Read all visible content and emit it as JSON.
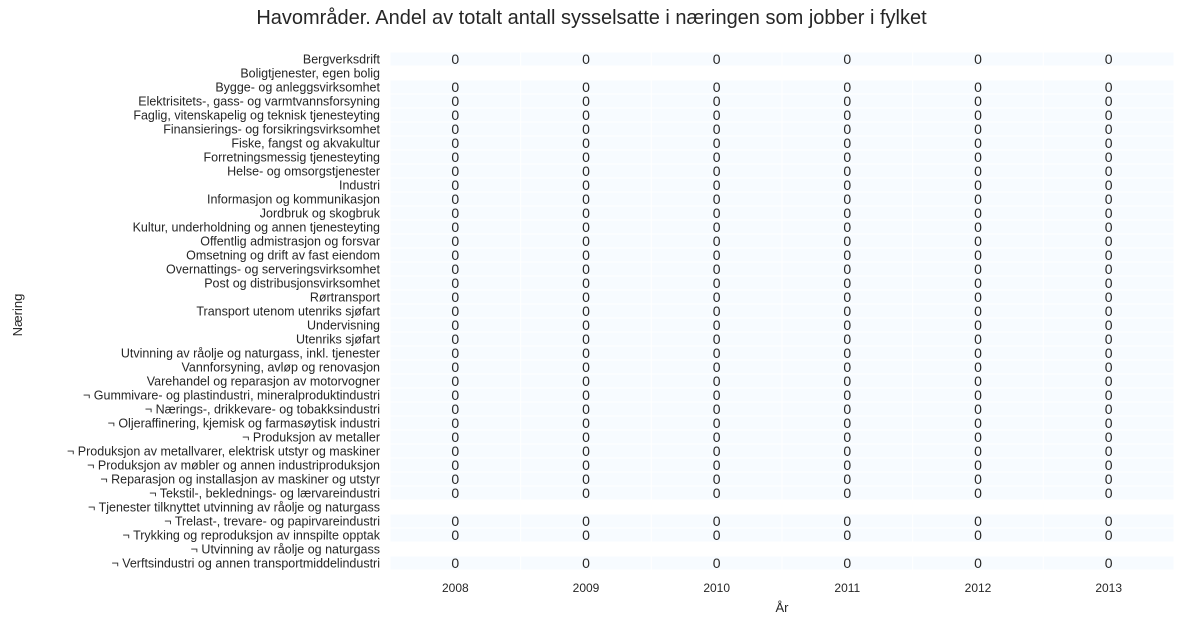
{
  "chart_data": {
    "type": "heatmap",
    "title": "Havområder. Andel av totalt antall sysselsatte i næringen som jobber i fylket",
    "xlabel": "År",
    "ylabel": "Næring",
    "columns": [
      "2008",
      "2009",
      "2010",
      "2011",
      "2012",
      "2013"
    ],
    "rows": [
      "Bergverksdrift",
      "Boligtjenester, egen bolig",
      "Bygge- og anleggsvirksomhet",
      "Elektrisitets-, gass- og varmtvannsforsyning",
      "Faglig, vitenskapelig og teknisk tjenesteyting",
      "Finansierings- og forsikringsvirksomhet",
      "Fiske, fangst og akvakultur",
      "Forretningsmessig tjenesteyting",
      "Helse- og omsorgstjenester",
      "Industri",
      "Informasjon og kommunikasjon",
      "Jordbruk og skogbruk",
      "Kultur, underholdning og annen tjenesteyting",
      "Offentlig admistrasjon og forsvar",
      "Omsetning og drift av fast eiendom",
      "Overnattings- og serveringsvirksomhet",
      "Post og distribusjonsvirksomhet",
      "Rørtransport",
      "Transport utenom utenriks sjøfart",
      "Undervisning",
      "Utenriks sjøfart",
      "Utvinning av råolje og naturgass, inkl. tjenester",
      "Vannforsyning, avløp og renovasjon",
      "Varehandel og reparasjon av motorvogner",
      "¬ Gummivare- og plastindustri, mineralproduktindustri",
      "¬ Nærings-, drikkevare- og tobakksindustri",
      "¬ Oljeraffinering, kjemisk og farmasøytisk industri",
      "¬ Produksjon av metaller",
      "¬ Produksjon av metallvarer, elektrisk utstyr og maskiner",
      "¬ Produksjon av møbler og annen industriproduksjon",
      "¬ Reparasjon og installasjon av maskiner og utstyr",
      "¬ Tekstil-, beklednings- og lærvareindustri",
      "¬ Tjenester tilknyttet utvinning av råolje og naturgass",
      "¬ Trelast-, trevare- og papirvareindustri",
      "¬ Trykking og reproduksjon av innspilte opptak",
      "¬ Utvinning av råolje og naturgass",
      "¬ Verftsindustri og annen transportmiddelindustri"
    ],
    "values": [
      [
        0,
        0,
        0,
        0,
        0,
        0
      ],
      [
        null,
        null,
        null,
        null,
        null,
        null
      ],
      [
        0,
        0,
        0,
        0,
        0,
        0
      ],
      [
        0,
        0,
        0,
        0,
        0,
        0
      ],
      [
        0,
        0,
        0,
        0,
        0,
        0
      ],
      [
        0,
        0,
        0,
        0,
        0,
        0
      ],
      [
        0,
        0,
        0,
        0,
        0,
        0
      ],
      [
        0,
        0,
        0,
        0,
        0,
        0
      ],
      [
        0,
        0,
        0,
        0,
        0,
        0
      ],
      [
        0,
        0,
        0,
        0,
        0,
        0
      ],
      [
        0,
        0,
        0,
        0,
        0,
        0
      ],
      [
        0,
        0,
        0,
        0,
        0,
        0
      ],
      [
        0,
        0,
        0,
        0,
        0,
        0
      ],
      [
        0,
        0,
        0,
        0,
        0,
        0
      ],
      [
        0,
        0,
        0,
        0,
        0,
        0
      ],
      [
        0,
        0,
        0,
        0,
        0,
        0
      ],
      [
        0,
        0,
        0,
        0,
        0,
        0
      ],
      [
        0,
        0,
        0,
        0,
        0,
        0
      ],
      [
        0,
        0,
        0,
        0,
        0,
        0
      ],
      [
        0,
        0,
        0,
        0,
        0,
        0
      ],
      [
        0,
        0,
        0,
        0,
        0,
        0
      ],
      [
        0,
        0,
        0,
        0,
        0,
        0
      ],
      [
        0,
        0,
        0,
        0,
        0,
        0
      ],
      [
        0,
        0,
        0,
        0,
        0,
        0
      ],
      [
        0,
        0,
        0,
        0,
        0,
        0
      ],
      [
        0,
        0,
        0,
        0,
        0,
        0
      ],
      [
        0,
        0,
        0,
        0,
        0,
        0
      ],
      [
        0,
        0,
        0,
        0,
        0,
        0
      ],
      [
        0,
        0,
        0,
        0,
        0,
        0
      ],
      [
        0,
        0,
        0,
        0,
        0,
        0
      ],
      [
        0,
        0,
        0,
        0,
        0,
        0
      ],
      [
        0,
        0,
        0,
        0,
        0,
        0
      ],
      [
        null,
        null,
        null,
        null,
        null,
        null
      ],
      [
        0,
        0,
        0,
        0,
        0,
        0
      ],
      [
        0,
        0,
        0,
        0,
        0,
        0
      ],
      [
        null,
        null,
        null,
        null,
        null,
        null
      ],
      [
        0,
        0,
        0,
        0,
        0,
        0
      ]
    ],
    "cell_color": "#f7fbff",
    "grid_color": "#ffffff"
  }
}
